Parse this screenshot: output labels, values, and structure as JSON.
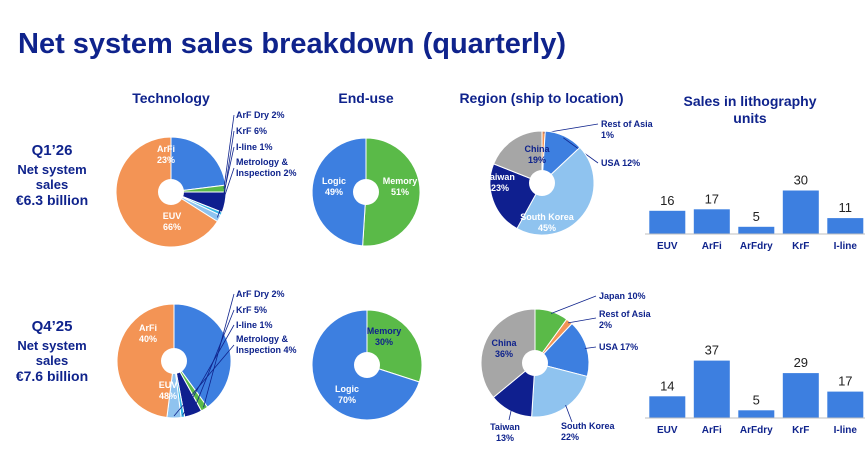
{
  "title": "Net system sales breakdown (quarterly)",
  "headers": {
    "technology": "Technology",
    "end_use": "End-use",
    "region": "Region (ship to location)",
    "litho_line1": "Sales in lithography",
    "litho_line2": "units"
  },
  "rows": [
    {
      "quarter": "Q1’26",
      "label": "Net system sales",
      "value": "€6.3 billion"
    },
    {
      "quarter": "Q4’25",
      "label": "Net system sales",
      "value": "€7.6 billion"
    }
  ],
  "colors": {
    "blue": "#3d7fe0",
    "orange": "#f39455",
    "green": "#5aba48",
    "navy": "#0f1f8f",
    "lightblue": "#8fc3ef",
    "cyan": "#33b5e5",
    "gray": "#a6a6a6",
    "white": "#ffffff",
    "title": "#0f238c"
  },
  "chart_data": [
    {
      "type": "pie",
      "title": "Technology",
      "period": "Q1’26",
      "slices": [
        {
          "name": "ArFi",
          "value": 23,
          "text": "ArFi\n23%",
          "color": "blue",
          "label": "inside"
        },
        {
          "name": "ArF Dry",
          "value": 2,
          "text": "ArF Dry 2%",
          "color": "green",
          "label": "leader"
        },
        {
          "name": "KrF",
          "value": 6,
          "text": "KrF 6%",
          "color": "navy",
          "label": "leader"
        },
        {
          "name": "I-line",
          "value": 1,
          "text": "I-line 1%",
          "color": "cyan",
          "label": "leader"
        },
        {
          "name": "Metrology & Inspection",
          "value": 2,
          "text": "Metrology &\nInspection 2%",
          "color": "lightblue",
          "label": "leader"
        },
        {
          "name": "EUV",
          "value": 66,
          "text": "EUV\n66%",
          "color": "orange",
          "label": "inside"
        }
      ]
    },
    {
      "type": "pie",
      "title": "End-use",
      "period": "Q1’26",
      "slices": [
        {
          "name": "Memory",
          "value": 51,
          "text": "Memory\n51%",
          "color": "green",
          "label": "inside"
        },
        {
          "name": "Logic",
          "value": 49,
          "text": "Logic\n49%",
          "color": "blue",
          "label": "inside"
        }
      ]
    },
    {
      "type": "pie",
      "title": "Region (ship to location)",
      "period": "Q1’26",
      "slices": [
        {
          "name": "Rest of Asia",
          "value": 1,
          "text": "Rest of Asia\n1%",
          "color": "orange",
          "label": "leader"
        },
        {
          "name": "USA",
          "value": 12,
          "text": "USA 12%",
          "color": "blue",
          "label": "leader"
        },
        {
          "name": "South Korea",
          "value": 45,
          "text": "South Korea\n45%",
          "color": "lightblue",
          "label": "inside"
        },
        {
          "name": "Taiwan",
          "value": 23,
          "text": "Taiwan\n23%",
          "color": "navy",
          "label": "inside"
        },
        {
          "name": "China",
          "value": 19,
          "text": "China\n19%",
          "color": "gray",
          "label": "inside"
        }
      ]
    },
    {
      "type": "bar",
      "title": "Sales in lithography units",
      "period": "Q1’26",
      "categories": [
        "EUV",
        "ArFi",
        "ArFdry",
        "KrF",
        "I-line"
      ],
      "values": [
        16,
        17,
        5,
        30,
        11
      ],
      "ylim": [
        0,
        40
      ]
    },
    {
      "type": "pie",
      "title": "Technology",
      "period": "Q4’25",
      "slices": [
        {
          "name": "ArFi",
          "value": 40,
          "text": "ArFi\n40%",
          "color": "blue",
          "label": "inside"
        },
        {
          "name": "ArF Dry",
          "value": 2,
          "text": "ArF Dry 2%",
          "color": "green",
          "label": "leader"
        },
        {
          "name": "KrF",
          "value": 5,
          "text": "KrF 5%",
          "color": "navy",
          "label": "leader"
        },
        {
          "name": "I-line",
          "value": 1,
          "text": "I-line 1%",
          "color": "cyan",
          "label": "leader"
        },
        {
          "name": "Metrology & Inspection",
          "value": 4,
          "text": "Metrology &\nInspection 4%",
          "color": "lightblue",
          "label": "leader"
        },
        {
          "name": "EUV",
          "value": 48,
          "text": "EUV\n48%",
          "color": "orange",
          "label": "inside"
        }
      ]
    },
    {
      "type": "pie",
      "title": "End-use",
      "period": "Q4’25",
      "slices": [
        {
          "name": "Memory",
          "value": 30,
          "text": "Memory\n30%",
          "color": "green",
          "label": "inside"
        },
        {
          "name": "Logic",
          "value": 70,
          "text": "Logic\n70%",
          "color": "blue",
          "label": "inside"
        }
      ]
    },
    {
      "type": "pie",
      "title": "Region (ship to location)",
      "period": "Q4’25",
      "slices": [
        {
          "name": "Japan",
          "value": 10,
          "text": "Japan 10%",
          "color": "green",
          "label": "leader"
        },
        {
          "name": "Rest of Asia",
          "value": 2,
          "text": "Rest of Asia\n2%",
          "color": "orange",
          "label": "leader"
        },
        {
          "name": "USA",
          "value": 17,
          "text": "USA 17%",
          "color": "blue",
          "label": "leader"
        },
        {
          "name": "South Korea",
          "value": 22,
          "text": "South Korea\n22%",
          "color": "lightblue",
          "label": "leader"
        },
        {
          "name": "Taiwan",
          "value": 13,
          "text": "Taiwan\n13%",
          "color": "navy",
          "label": "leader"
        },
        {
          "name": "China",
          "value": 36,
          "text": "China\n36%",
          "color": "gray",
          "label": "inside"
        }
      ]
    },
    {
      "type": "bar",
      "title": "Sales in lithography units",
      "period": "Q4’25",
      "categories": [
        "EUV",
        "ArFi",
        "ArFdry",
        "KrF",
        "I-line"
      ],
      "values": [
        14,
        37,
        5,
        29,
        17
      ],
      "ylim": [
        0,
        40
      ]
    }
  ]
}
